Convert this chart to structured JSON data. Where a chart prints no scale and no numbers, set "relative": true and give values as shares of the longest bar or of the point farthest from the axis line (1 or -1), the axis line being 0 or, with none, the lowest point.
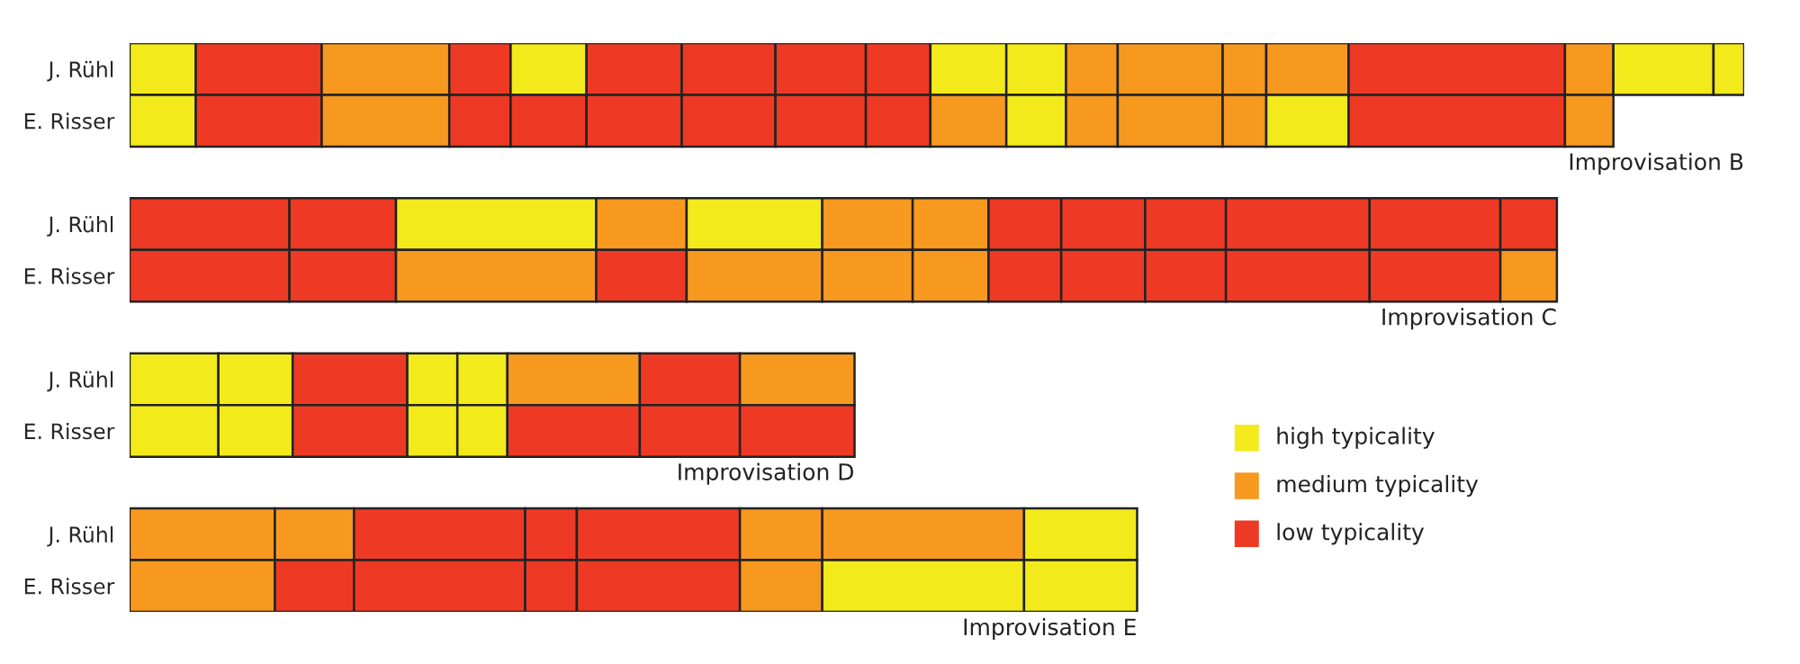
{
  "chart_data": [
    {
      "type": "bar",
      "orientation": "horizontal",
      "stacked": true,
      "relative": true,
      "categories": [
        "J. Rühl",
        "E. Risser",
        null,
        "J. Rühl",
        "E. Risser",
        null,
        "J. Rühl",
        "E. Risser",
        null,
        "J. Rühl",
        "E. Risser"
      ],
      "annotations": [
        "Improvisation B",
        "Improvisation C",
        "Improvisation D",
        "Improvisation E"
      ],
      "series": [
        {
          "values": [
            0.041,
            0.041,
            null,
            0.099,
            0.099,
            null,
            0.055,
            0.055,
            null,
            0.09,
            0.09
          ],
          "colors": [
            "#f3ea1b",
            "#f3ea1b",
            null,
            "#ee3a24",
            "#ee3a24",
            null,
            "#f3ea1b",
            "#f3ea1b",
            null,
            "#f7991f",
            "#f7991f"
          ]
        },
        {
          "values": [
            0.078,
            0.078,
            null,
            0.066,
            0.066,
            null,
            0.046,
            0.046,
            null,
            0.049,
            0.049
          ],
          "colors": [
            "#ee3a24",
            "#ee3a24",
            null,
            "#ee3a24",
            "#ee3a24",
            null,
            "#f3ea1b",
            "#f3ea1b",
            null,
            "#f7991f",
            "#ee3a24"
          ]
        },
        {
          "values": [
            0.079,
            0.079,
            null,
            0.124,
            0.124,
            null,
            0.071,
            0.071,
            null,
            0.106,
            0.106
          ],
          "colors": [
            "#f7991f",
            "#f7991f",
            null,
            "#f3ea1b",
            "#f7991f",
            null,
            "#ee3a24",
            "#ee3a24",
            null,
            "#ee3a24",
            "#ee3a24"
          ]
        },
        {
          "values": [
            0.038,
            0.038,
            null,
            0.056,
            0.056,
            null,
            0.031,
            0.031,
            null,
            0.032,
            0.032
          ],
          "colors": [
            "#ee3a24",
            "#ee3a24",
            null,
            "#f7991f",
            "#ee3a24",
            null,
            "#f3ea1b",
            "#f3ea1b",
            null,
            "#ee3a24",
            "#ee3a24"
          ]
        },
        {
          "values": [
            0.047,
            0.047,
            null,
            0.084,
            0.084,
            null,
            0.031,
            0.031,
            null,
            0.101,
            0.101
          ],
          "colors": [
            "#f3ea1b",
            "#ee3a24",
            null,
            "#f3ea1b",
            "#f7991f",
            null,
            "#f3ea1b",
            "#f3ea1b",
            null,
            "#ee3a24",
            "#ee3a24"
          ]
        },
        {
          "values": [
            0.059,
            0.059,
            null,
            0.056,
            0.056,
            null,
            0.082,
            0.082,
            null,
            0.051,
            0.051
          ],
          "colors": [
            "#ee3a24",
            "#ee3a24",
            null,
            "#f7991f",
            "#f7991f",
            null,
            "#f7991f",
            "#ee3a24",
            null,
            "#f7991f",
            "#f7991f"
          ]
        },
        {
          "values": [
            0.058,
            0.058,
            null,
            0.047,
            0.047,
            null,
            0.062,
            0.062,
            null,
            0.125,
            0.125
          ],
          "colors": [
            "#ee3a24",
            "#ee3a24",
            null,
            "#f7991f",
            "#f7991f",
            null,
            "#ee3a24",
            "#ee3a24",
            null,
            "#f7991f",
            "#f3ea1b"
          ]
        },
        {
          "values": [
            0.056,
            0.056,
            null,
            0.045,
            0.045,
            null,
            0.071,
            0.071,
            null,
            0.07,
            0.07
          ],
          "colors": [
            "#ee3a24",
            "#ee3a24",
            null,
            "#ee3a24",
            "#ee3a24",
            null,
            "#f7991f",
            "#ee3a24",
            null,
            "#f3ea1b",
            "#f3ea1b"
          ]
        },
        {
          "values": [
            0.04,
            0.04,
            null,
            0.052,
            0.052,
            null,
            null,
            null,
            null,
            null,
            null
          ],
          "colors": [
            "#ee3a24",
            "#ee3a24",
            null,
            "#ee3a24",
            "#ee3a24",
            null,
            null,
            null,
            null,
            null,
            null
          ]
        },
        {
          "values": [
            0.047,
            0.047,
            null,
            0.05,
            0.05,
            null,
            null,
            null,
            null,
            null,
            null
          ],
          "colors": [
            "#f3ea1b",
            "#f7991f",
            null,
            "#ee3a24",
            "#ee3a24",
            null,
            null,
            null,
            null,
            null,
            null
          ]
        },
        {
          "values": [
            0.037,
            0.037,
            null,
            0.089,
            0.089,
            null,
            null,
            null,
            null,
            null,
            null
          ],
          "colors": [
            "#f3ea1b",
            "#f3ea1b",
            null,
            "#ee3a24",
            "#ee3a24",
            null,
            null,
            null,
            null,
            null,
            null
          ]
        },
        {
          "values": [
            0.032,
            0.032,
            null,
            0.081,
            0.081,
            null,
            null,
            null,
            null,
            null,
            null
          ],
          "colors": [
            "#f7991f",
            "#f7991f",
            null,
            "#ee3a24",
            "#ee3a24",
            null,
            null,
            null,
            null,
            null,
            null
          ]
        },
        {
          "values": [
            0.065,
            0.065,
            null,
            0.035,
            0.035,
            null,
            null,
            null,
            null,
            null,
            null
          ],
          "colors": [
            "#f7991f",
            "#f7991f",
            null,
            "#ee3a24",
            "#f7991f",
            null,
            null,
            null,
            null,
            null,
            null
          ]
        },
        {
          "values": [
            0.027,
            0.027,
            null,
            null,
            null,
            null,
            null,
            null,
            null,
            null,
            null
          ],
          "colors": [
            "#f7991f",
            "#f7991f",
            null,
            null,
            null,
            null,
            null,
            null,
            null,
            null,
            null
          ]
        },
        {
          "values": [
            0.051,
            0.051,
            null,
            null,
            null,
            null,
            null,
            null,
            null,
            null,
            null
          ],
          "colors": [
            "#f7991f",
            "#f3ea1b",
            null,
            null,
            null,
            null,
            null,
            null,
            null,
            null,
            null
          ]
        },
        {
          "values": [
            0.134,
            0.134,
            null,
            null,
            null,
            null,
            null,
            null,
            null,
            null,
            null
          ],
          "colors": [
            "#ee3a24",
            "#ee3a24",
            null,
            null,
            null,
            null,
            null,
            null,
            null,
            null,
            null
          ]
        },
        {
          "values": [
            0.03,
            0.03,
            null,
            null,
            null,
            null,
            null,
            null,
            null,
            null,
            null
          ],
          "colors": [
            "#f7991f",
            "#f7991f",
            null,
            null,
            null,
            null,
            null,
            null,
            null,
            null,
            null
          ]
        },
        {
          "values": [
            0.062,
            null,
            null,
            null,
            null,
            null,
            null,
            null,
            null,
            null,
            null
          ],
          "colors": [
            "#f3ea1b",
            null,
            null,
            null,
            null,
            null,
            null,
            null,
            null,
            null,
            null
          ]
        },
        {
          "values": [
            0.019,
            null,
            null,
            null,
            null,
            null,
            null,
            null,
            null,
            null,
            null
          ],
          "colors": [
            "#f3ea1b",
            null,
            null,
            null,
            null,
            null,
            null,
            null,
            null,
            null,
            null
          ]
        }
      ]
    },
    {
      "type": "other",
      "categories": [
        "high typicality",
        "medium typicality",
        "low typicality"
      ],
      "colors": [
        "#f3ea1b",
        "#f7991f",
        "#ee3a24"
      ]
    }
  ]
}
